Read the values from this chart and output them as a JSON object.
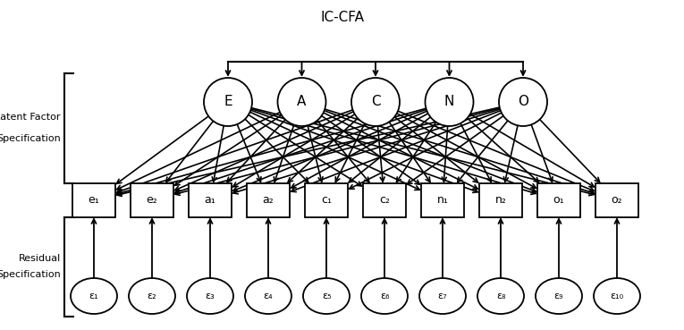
{
  "title": "IC-CFA",
  "title_fontsize": 11,
  "background_color": "#ffffff",
  "latent_factors": [
    "E",
    "A",
    "C",
    "N",
    "O"
  ],
  "observed_labels": [
    "e₁",
    "e₂",
    "a₁",
    "a₂",
    "c₁",
    "c₂",
    "n₁",
    "n₂",
    "o₁",
    "o₂"
  ],
  "residual_labels": [
    "ε₁",
    "ε₂",
    "ε₃",
    "ε₄",
    "ε₅",
    "ε₆",
    "ε₇",
    "ε₈",
    "ε₉",
    "ε₁₀"
  ],
  "lf_fontsize": 11,
  "obs_fontsize": 9,
  "res_fontsize": 8,
  "bracket_label_fontsize": 8
}
